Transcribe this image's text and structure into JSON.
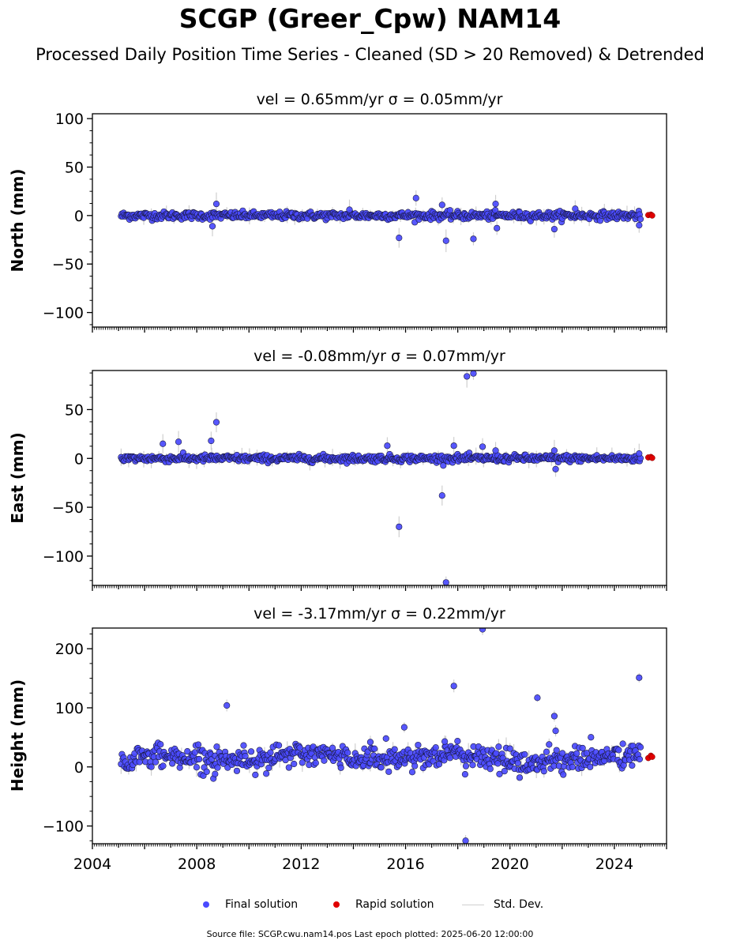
{
  "title": "SCGP (Greer_Cpw) NAM14",
  "subtitle": "Processed Daily Position Time Series - Cleaned (SD > 20 Removed) & Detrended",
  "colors": {
    "final": "#4a4aff",
    "final_edge": "#1a1a40",
    "rapid": "#e00000",
    "stddev": "#cfcfcf"
  },
  "legend": {
    "final": "Final solution",
    "rapid": "Rapid solution",
    "stddev": "Std. Dev."
  },
  "footer": "Source file: SCGP.cwu.nam14.pos  Last epoch plotted: 2025-06-20 12:00:00",
  "chart_data": [
    {
      "type": "scatter",
      "title": "vel = 0.65mm/yr   σ = 0.05mm/yr",
      "ylabel": "North (mm)",
      "xlim": [
        2004.0,
        2026.0
      ],
      "ylim": [
        -115,
        105
      ],
      "yticks": [
        100,
        50,
        0,
        -50,
        -100
      ],
      "ytick_labels": [
        "100",
        "50",
        "0",
        "−50",
        "−100"
      ],
      "baseline": {
        "start": 2005.1,
        "end": 2025.0,
        "amplitude": 2.2
      },
      "outliers": [
        [
          2008.6,
          -11
        ],
        [
          2008.75,
          12
        ],
        [
          2013.85,
          6
        ],
        [
          2015.75,
          -23
        ],
        [
          2016.4,
          18
        ],
        [
          2017.4,
          11
        ],
        [
          2017.55,
          -26
        ],
        [
          2018.6,
          -24
        ],
        [
          2019.45,
          12
        ],
        [
          2019.5,
          -13
        ],
        [
          2021.7,
          -14
        ],
        [
          2022.5,
          7
        ],
        [
          2024.95,
          -10
        ]
      ],
      "rapid": [
        [
          2025.3,
          0.5
        ],
        [
          2025.4,
          1.0
        ],
        [
          2025.45,
          0.0
        ]
      ]
    },
    {
      "type": "scatter",
      "title": "vel = -0.08mm/yr   σ = 0.07mm/yr",
      "ylabel": "East (mm)",
      "xlim": [
        2004.0,
        2026.0
      ],
      "ylim": [
        -130,
        90
      ],
      "yticks": [
        50,
        0,
        -50,
        -100
      ],
      "ytick_labels": [
        "50",
        "0",
        "−50",
        "−100"
      ],
      "baseline": {
        "start": 2005.1,
        "end": 2025.0,
        "amplitude": 2.0
      },
      "outliers": [
        [
          2006.7,
          15
        ],
        [
          2007.3,
          17
        ],
        [
          2008.55,
          18
        ],
        [
          2008.75,
          37
        ],
        [
          2015.3,
          13
        ],
        [
          2015.75,
          -70
        ],
        [
          2017.4,
          -38
        ],
        [
          2017.55,
          -127
        ],
        [
          2017.85,
          13
        ],
        [
          2018.35,
          84
        ],
        [
          2018.6,
          87
        ],
        [
          2018.95,
          12
        ],
        [
          2019.45,
          8
        ],
        [
          2021.7,
          8
        ],
        [
          2021.75,
          -11
        ],
        [
          2024.95,
          5
        ]
      ],
      "rapid": [
        [
          2025.3,
          1.0
        ],
        [
          2025.4,
          1.5
        ],
        [
          2025.45,
          0.5
        ]
      ]
    },
    {
      "type": "scatter",
      "title": "vel = -3.17mm/yr   σ = 0.22mm/yr",
      "ylabel": "Height (mm)",
      "xlim": [
        2004.0,
        2026.0
      ],
      "ylim": [
        -130,
        235
      ],
      "yticks": [
        200,
        100,
        0,
        -100
      ],
      "ytick_labels": [
        "200",
        "100",
        "0",
        "−100"
      ],
      "xticks": [
        2004,
        2008,
        2012,
        2016,
        2020,
        2024
      ],
      "xtick_labels": [
        "2004",
        "2008",
        "2012",
        "2016",
        "2020",
        "2024"
      ],
      "baseline": {
        "start": 2005.1,
        "end": 2025.0,
        "amplitude": 11,
        "wave": [
          [
            2005.1,
            8
          ],
          [
            2006.5,
            20
          ],
          [
            2008.0,
            15
          ],
          [
            2009.5,
            12
          ],
          [
            2011.0,
            17
          ],
          [
            2012.5,
            22
          ],
          [
            2014.0,
            15
          ],
          [
            2015.5,
            14
          ],
          [
            2016.5,
            16
          ],
          [
            2017.0,
            22
          ],
          [
            2018.5,
            19
          ],
          [
            2019.5,
            12
          ],
          [
            2020.5,
            5
          ],
          [
            2021.5,
            10
          ],
          [
            2023.0,
            15
          ],
          [
            2024.0,
            18
          ],
          [
            2025.0,
            20
          ]
        ]
      },
      "outliers": [
        [
          2009.15,
          104
        ],
        [
          2014.65,
          42
        ],
        [
          2015.25,
          48
        ],
        [
          2015.95,
          67
        ],
        [
          2017.5,
          43
        ],
        [
          2017.85,
          137
        ],
        [
          2018.3,
          -125
        ],
        [
          2018.95,
          233
        ],
        [
          2020.0,
          31
        ],
        [
          2021.05,
          117
        ],
        [
          2021.5,
          38
        ],
        [
          2021.7,
          86
        ],
        [
          2021.75,
          61
        ],
        [
          2008.7,
          -12
        ],
        [
          2024.95,
          151
        ]
      ],
      "rapid": [
        [
          2025.3,
          15
        ],
        [
          2025.4,
          19
        ],
        [
          2025.45,
          17
        ]
      ]
    }
  ]
}
